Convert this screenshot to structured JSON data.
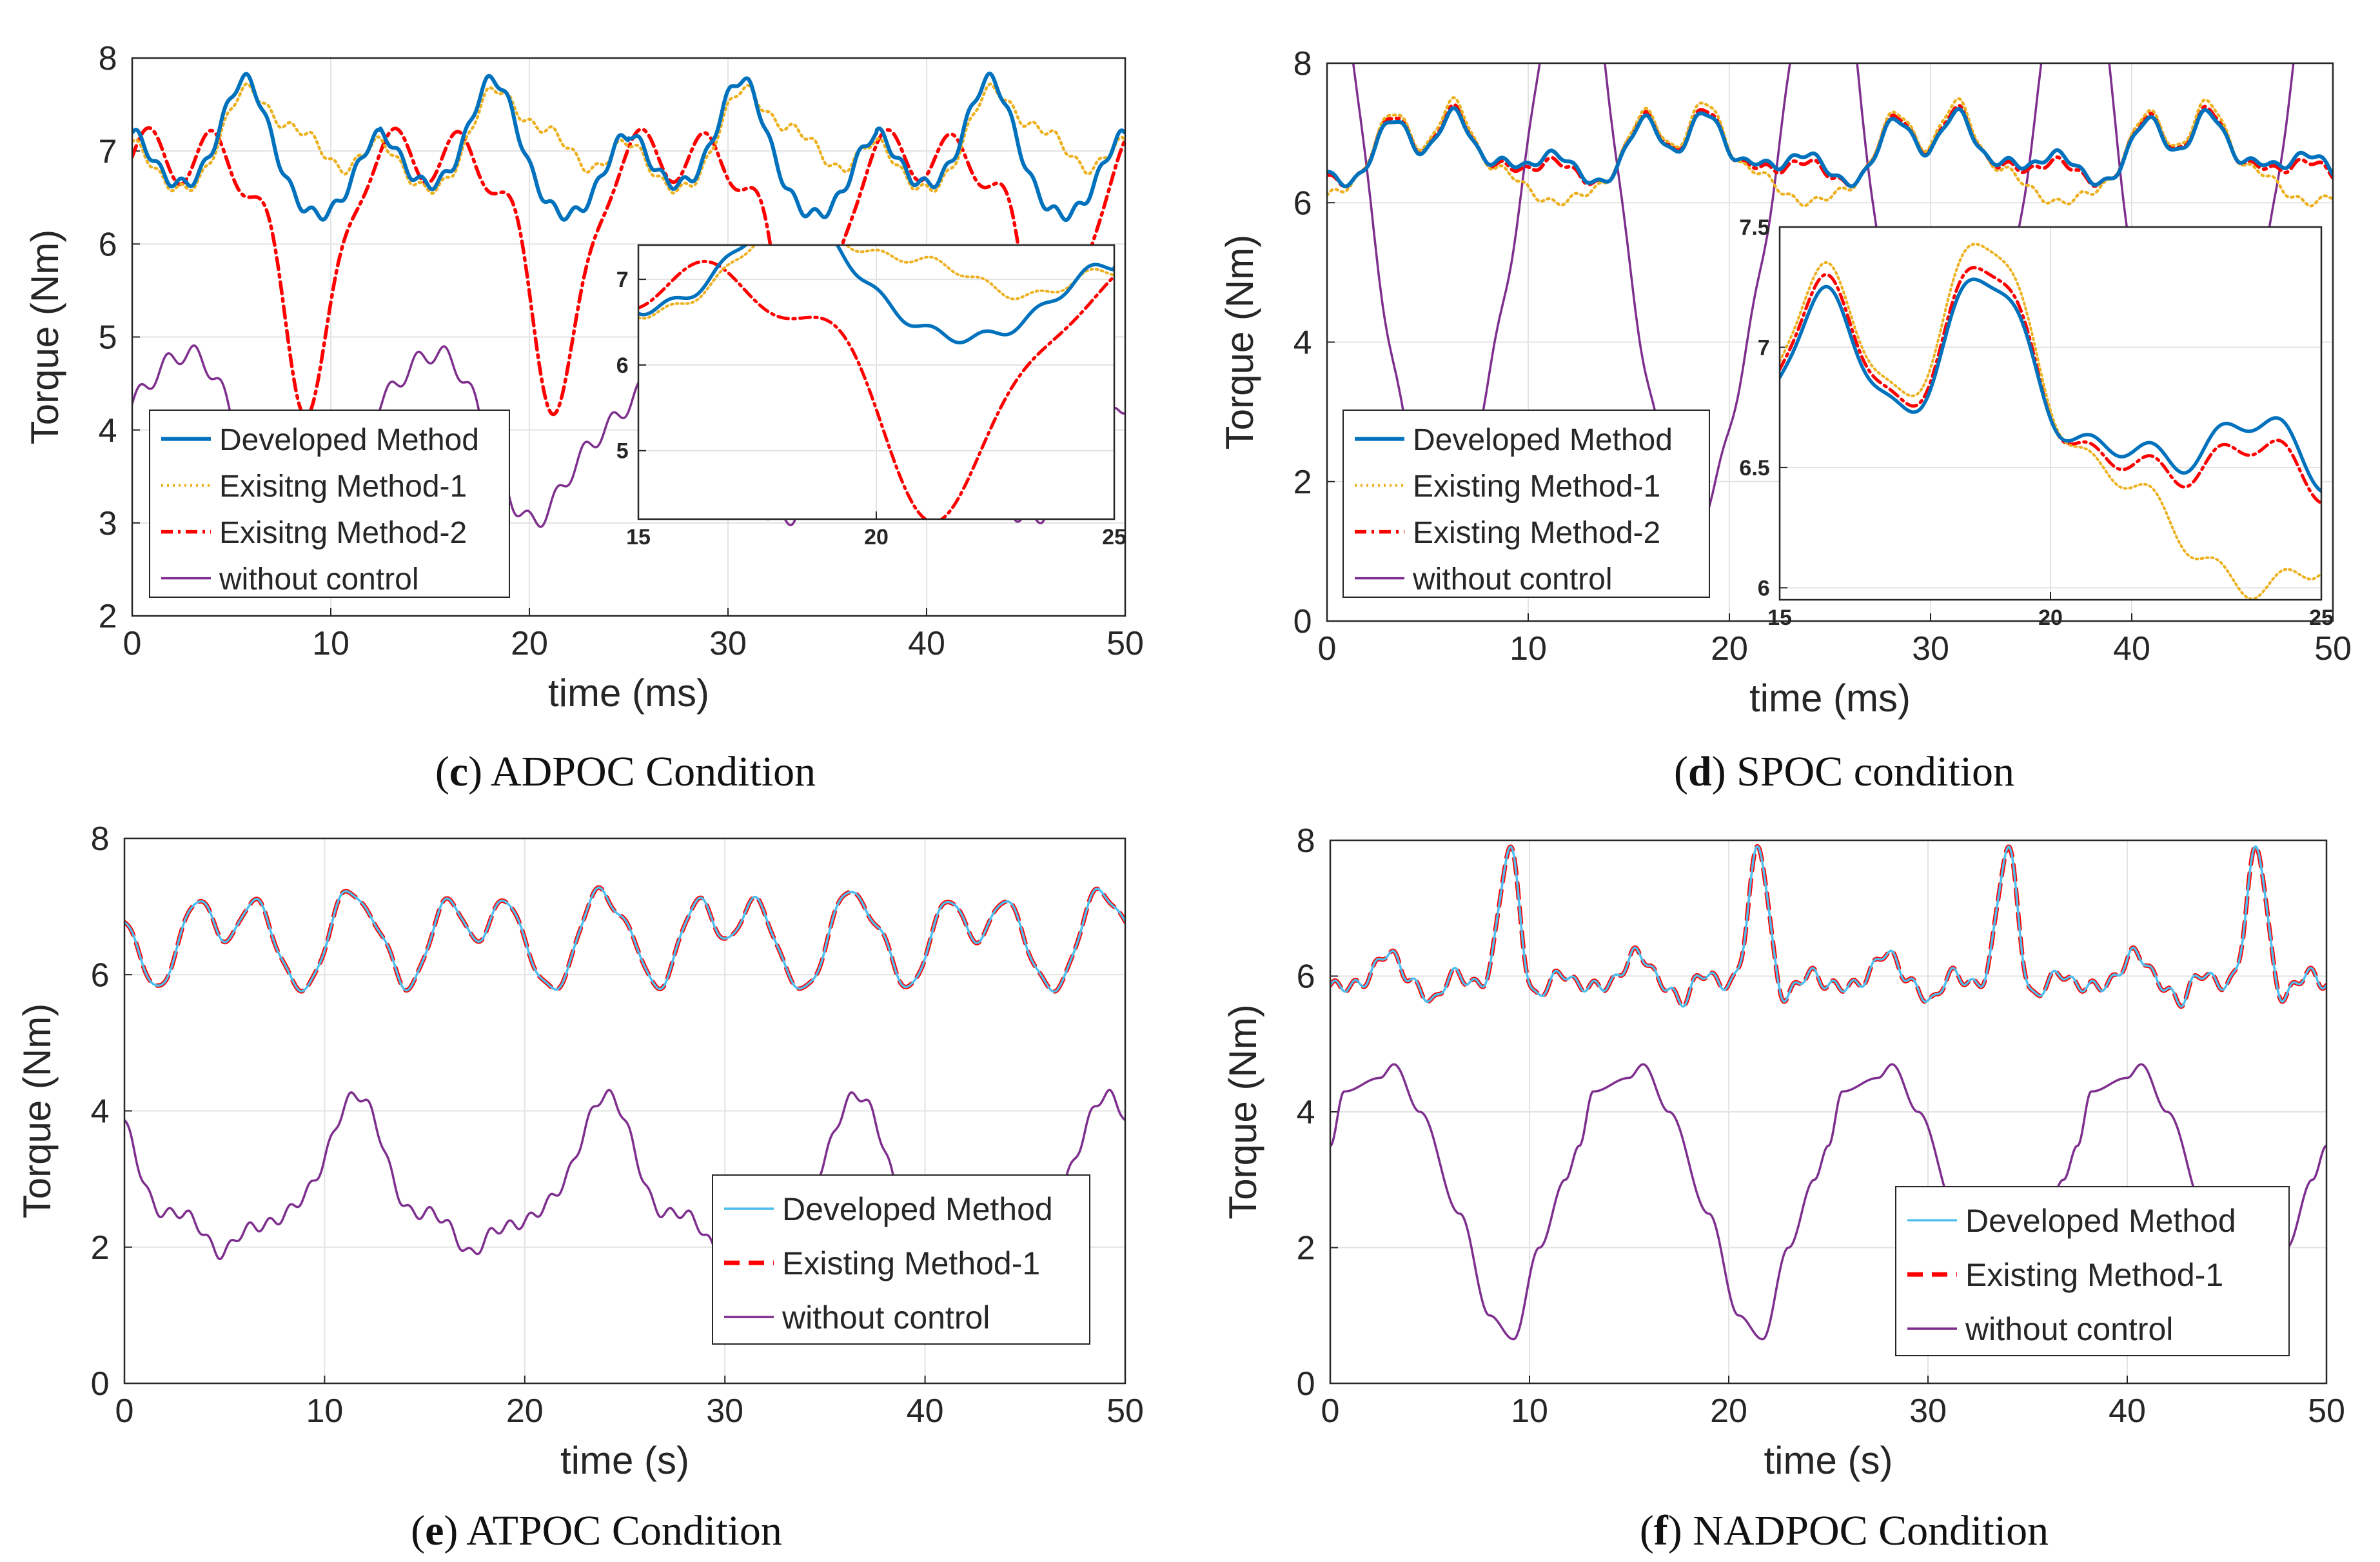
{
  "figure": {
    "panels": [
      {
        "id": "c",
        "caption_letter": "c",
        "caption_text": "ADPOC Condition"
      },
      {
        "id": "d",
        "caption_letter": "d",
        "caption_text": "SPOC condition"
      },
      {
        "id": "e",
        "caption_letter": "e",
        "caption_text": "ATPOC Condition"
      },
      {
        "id": "f",
        "caption_letter": "f",
        "caption_text": "NADPOC Condition"
      }
    ]
  },
  "colors": {
    "developed_cd": "#0072bd",
    "developed_ef": "#4dbeee",
    "existing1": "#edb120",
    "existing1_ef": "#ff0000",
    "existing2": "#ff0000",
    "without": "#7e2f8e",
    "grid": "#e3e3e3",
    "axes": "#262626"
  },
  "chart_data": [
    {
      "id": "c",
      "type": "line",
      "xlabel": "time (ms)",
      "ylabel": "Torque (Nm)",
      "xlim": [
        0,
        50
      ],
      "ylim": [
        2,
        8
      ],
      "xticks": [
        0,
        10,
        20,
        30,
        40,
        50
      ],
      "yticks": [
        2,
        3,
        4,
        5,
        6,
        7,
        8
      ],
      "legend_position": "bottom-left",
      "series": [
        {
          "name": "Developed Method",
          "color_key": "developed_cd",
          "style": "solid-thick",
          "params": {
            "type": "periodic",
            "base": 6.6,
            "period": 12.5,
            "phase": 0,
            "bumps": [
              [
                0.6,
                5.9,
                1.2
              ],
              [
                0.6,
                12.4,
                1.0
              ],
              [
                0.6,
                18.0,
                1.1
              ],
              [
                -0.3,
                21.9,
                1.4
              ]
            ],
            "ripple_amp": 0.06,
            "ripple_period": 1.1
          }
        },
        {
          "name": "Exisitng Method-1",
          "color_key": "existing1",
          "style": "dotted",
          "params": {
            "type": "periodic",
            "base": 6.55,
            "period": 12.5,
            "phase": 0,
            "bumps": [
              [
                0.55,
                5.9,
                1.2
              ],
              [
                0.55,
                12.4,
                1.0
              ],
              [
                0.55,
                18.0,
                1.1
              ],
              [
                0.4,
                20.6,
                1.1
              ],
              [
                0.3,
                9.2,
                1.0
              ]
            ],
            "ripple_amp": 0.05,
            "ripple_period": 1.1
          }
        },
        {
          "name": "Exisitng Method-2",
          "color_key": "existing2",
          "style": "dashdot",
          "params": {
            "type": "periodic",
            "base": 6.75,
            "period": 12.5,
            "phase": 0,
            "bumps": [
              [
                -2.4,
                8.9,
                1.3
              ],
              [
                0.25,
                1.3,
                0.9
              ],
              [
                0.25,
                4.4,
                0.9
              ],
              [
                0.25,
                11.6,
                0.9
              ]
            ],
            "ripple_amp": 0.25,
            "ripple_period": 3.1
          }
        },
        {
          "name": "without control",
          "color_key": "without",
          "style": "solid-thin",
          "params": {
            "type": "periodic",
            "base": 3.9,
            "period": 12.5,
            "phase": 0,
            "bumps": [
              [
                0.7,
                2.0,
                1.8
              ],
              [
                -0.9,
                7.6,
                1.5
              ],
              [
                0.4,
                3.9,
                1.4
              ]
            ],
            "ripple_amp": 0.1,
            "ripple_period": 1.4
          }
        }
      ],
      "inset": {
        "xlim": [
          15,
          25
        ],
        "ylim": [
          4.2,
          7.4
        ],
        "xticks": [
          15,
          20,
          25
        ],
        "yticks": [
          5,
          6,
          7
        ],
        "series_indices": [
          0,
          1,
          2
        ]
      }
    },
    {
      "id": "d",
      "type": "line",
      "xlabel": "time (ms)",
      "ylabel": "Torque (Nm)",
      "xlim": [
        0,
        50
      ],
      "ylim": [
        0,
        8
      ],
      "xticks": [
        0,
        10,
        20,
        30,
        40,
        50
      ],
      "yticks": [
        0,
        2,
        4,
        6,
        8
      ],
      "legend_position": "bottom-left",
      "series": [
        {
          "name": "Developed Method",
          "color_key": "developed_cd",
          "style": "solid-thick",
          "params": {
            "type": "periodic",
            "base": 6.2,
            "period": 12.5,
            "phase": 0,
            "bumps": [
              [
                1.0,
                3.3,
                0.9
              ],
              [
                1.1,
                6.3,
                0.9
              ],
              [
                0.5,
                11.3,
                1.0
              ],
              [
                0.35,
                8.8,
                0.8
              ]
            ],
            "ripple_amp": 0.05,
            "ripple_period": 1.2
          }
        },
        {
          "name": "Existing Method-1",
          "color_key": "existing1",
          "style": "dotted",
          "params": {
            "type": "periodic",
            "base": 6.2,
            "period": 12.5,
            "phase": 0,
            "bumps": [
              [
                1.1,
                3.3,
                0.9
              ],
              [
                1.25,
                6.3,
                0.9
              ],
              [
                -0.2,
                11.3,
                1.0
              ],
              [
                0.25,
                8.8,
                0.8
              ]
            ],
            "ripple_amp": 0.05,
            "ripple_period": 1.2
          }
        },
        {
          "name": "Existing Method-2",
          "color_key": "existing2",
          "style": "dashdot",
          "params": {
            "type": "periodic",
            "base": 6.2,
            "period": 12.5,
            "phase": 0,
            "bumps": [
              [
                1.05,
                3.3,
                0.9
              ],
              [
                1.15,
                6.3,
                0.9
              ],
              [
                0.4,
                11.3,
                1.0
              ],
              [
                0.3,
                8.8,
                0.8
              ]
            ],
            "ripple_amp": 0.05,
            "ripple_period": 1.2
          }
        },
        {
          "name": "without control",
          "color_key": "without",
          "style": "solid-thin",
          "params": {
            "type": "periodic",
            "base": 3.3,
            "period": 12.5,
            "phase": 0,
            "bumps": [
              [
                2.9,
                11.5,
                2.2
              ],
              [
                2.2,
                0.0,
                1.6
              ],
              [
                2.2,
                12.5,
                1.6
              ],
              [
                -2.0,
                5.8,
                1.6
              ]
            ],
            "ripple_amp": 0.1,
            "ripple_period": 1.6
          }
        }
      ],
      "inset": {
        "xlim": [
          15,
          25
        ],
        "ylim": [
          5.95,
          7.5
        ],
        "xticks": [
          15,
          20,
          25
        ],
        "yticks": [
          6,
          6.5,
          7,
          7.5
        ],
        "series_indices": [
          0,
          1,
          2
        ]
      }
    },
    {
      "id": "e",
      "type": "line",
      "xlabel": "time (s)",
      "ylabel": "Torque (Nm)",
      "xlim": [
        0,
        50
      ],
      "ylim": [
        0,
        8
      ],
      "xticks": [
        0,
        10,
        20,
        30,
        40,
        50
      ],
      "yticks": [
        0,
        2,
        4,
        6,
        8
      ],
      "legend_position": "bottom-right",
      "series": [
        {
          "name": "Developed Method",
          "color_key": "developed_ef",
          "style": "solid-thin",
          "params": {
            "type": "periodic",
            "base": 6.05,
            "period": 12.5,
            "phase": 0,
            "bumps": [
              [
                1.05,
                3.7,
                0.8
              ],
              [
                1.05,
                6.5,
                0.8
              ],
              [
                1.15,
                11.1,
                0.8
              ],
              [
                0.5,
                0.2,
                0.7
              ],
              [
                -0.35,
                1.6,
                0.6
              ],
              [
                -0.3,
                9.0,
                0.7
              ]
            ],
            "ripple_amp": 0.04,
            "ripple_period": 1.3
          }
        },
        {
          "name": "Existing Method-1",
          "color_key": "existing1_ef",
          "style": "dashed",
          "params": {
            "type": "periodic",
            "base": 6.05,
            "period": 12.5,
            "phase": 0,
            "bumps": [
              [
                1.05,
                3.7,
                0.8
              ],
              [
                1.05,
                6.5,
                0.8
              ],
              [
                1.15,
                11.1,
                0.8
              ],
              [
                0.5,
                0.2,
                0.7
              ],
              [
                -0.35,
                1.6,
                0.6
              ],
              [
                -0.3,
                9.0,
                0.7
              ]
            ],
            "ripple_amp": 0.04,
            "ripple_period": 1.3
          }
        },
        {
          "name": "without control",
          "color_key": "without",
          "style": "solid-thin",
          "params": {
            "type": "periodic",
            "base": 2.3,
            "period": 12.5,
            "phase": 0,
            "bumps": [
              [
                1.5,
                11.1,
                1.0
              ],
              [
                1.0,
                0.0,
                0.9
              ],
              [
                0.2,
                2.8,
                0.7
              ],
              [
                -0.4,
                4.8,
                0.6
              ],
              [
                0.3,
                9.0,
                0.9
              ]
            ],
            "ripple_amp": 0.08,
            "ripple_period": 1.0
          }
        }
      ]
    },
    {
      "id": "f",
      "type": "line",
      "xlabel": "time (s)",
      "ylabel": "Torque (Nm)",
      "xlim": [
        0,
        50
      ],
      "ylim": [
        0,
        8
      ],
      "xticks": [
        0,
        10,
        20,
        30,
        40,
        50
      ],
      "yticks": [
        0,
        2,
        4,
        6,
        8
      ],
      "legend_position": "bottom-right",
      "series": [
        {
          "name": "Developed Method",
          "color_key": "developed_ef",
          "style": "solid-thin",
          "params": {
            "type": "periodic",
            "base": 5.85,
            "period": 12.5,
            "phase": 0,
            "bumps": [
              [
                2.05,
                9.0,
                0.5
              ],
              [
                0.5,
                2.9,
                0.6
              ],
              [
                0.2,
                6.2,
                0.5
              ],
              [
                -0.25,
                5.2,
                0.4
              ],
              [
                -0.25,
                10.1,
                0.4
              ],
              [
                0.2,
                11.6,
                0.4
              ]
            ],
            "ripple_amp": 0.08,
            "ripple_period": 1.0
          }
        },
        {
          "name": "Existing Method-1",
          "color_key": "existing1_ef",
          "style": "dashed",
          "params": {
            "type": "periodic",
            "base": 5.85,
            "period": 12.5,
            "phase": 0,
            "bumps": [
              [
                2.05,
                9.0,
                0.5
              ],
              [
                0.5,
                2.9,
                0.6
              ],
              [
                0.2,
                6.2,
                0.5
              ],
              [
                -0.25,
                5.2,
                0.4
              ],
              [
                -0.25,
                10.1,
                0.4
              ],
              [
                0.2,
                11.6,
                0.4
              ]
            ],
            "ripple_amp": 0.08,
            "ripple_period": 1.0
          }
        },
        {
          "name": "without control",
          "color_key": "without",
          "style": "solid-thin",
          "params": {
            "type": "waveform",
            "period": 12.5,
            "points": [
              [
                0,
                3.5
              ],
              [
                0.7,
                4.3
              ],
              [
                2.5,
                4.5
              ],
              [
                3.2,
                4.7
              ],
              [
                4.5,
                4.0
              ],
              [
                6.5,
                2.5
              ],
              [
                8.0,
                1.0
              ],
              [
                9.2,
                0.65
              ],
              [
                10.5,
                2.0
              ],
              [
                11.8,
                3.0
              ],
              [
                12.5,
                3.5
              ]
            ]
          }
        }
      ]
    }
  ]
}
